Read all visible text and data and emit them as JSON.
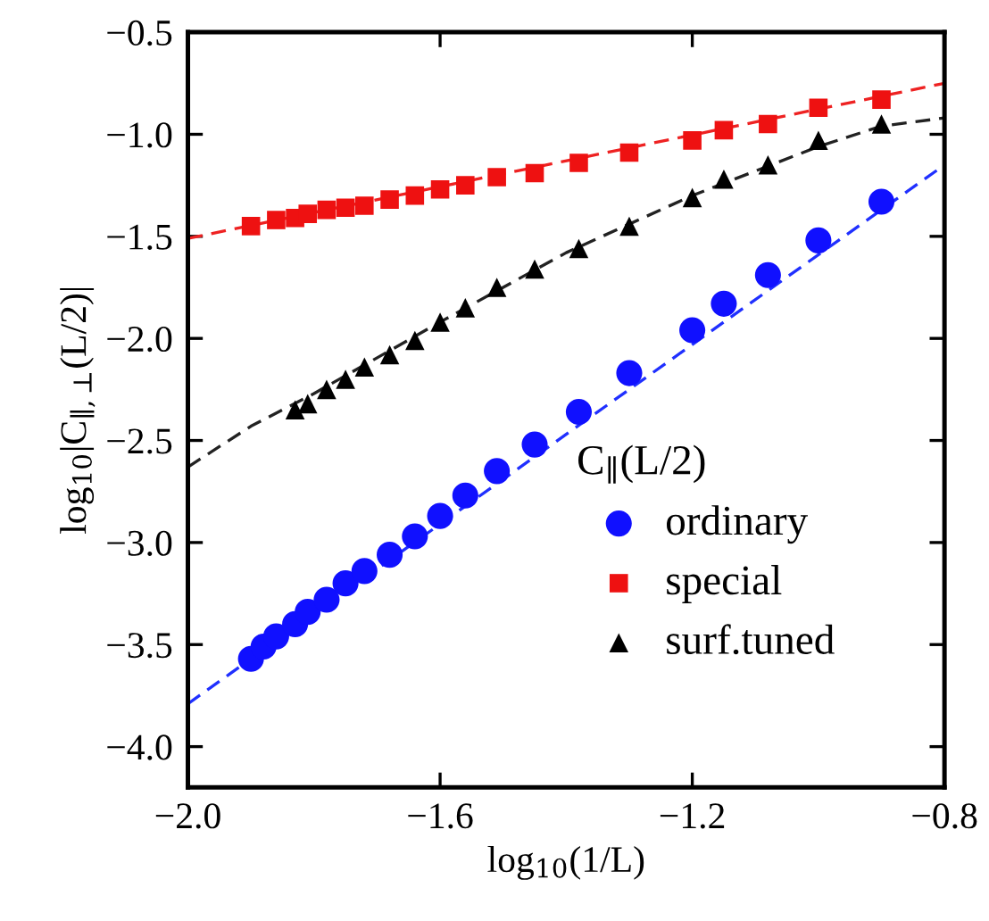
{
  "chart_data": {
    "type": "scatter",
    "xlabel": "log$_{10}$(1/L)",
    "ylabel": "log$_{10}$|C$_{∥,⊥}$(L/2)|",
    "legend_title": "C$_{∥}$(L/2)",
    "series": [
      {
        "name": "ordinary",
        "marker": "circle",
        "color": "#1010ff",
        "x": [
          -1.9,
          -1.88,
          -1.86,
          -1.83,
          -1.81,
          -1.78,
          -1.75,
          -1.72,
          -1.68,
          -1.64,
          -1.6,
          -1.56,
          -1.51,
          -1.45,
          -1.38,
          -1.3,
          -1.2,
          -1.15,
          -1.08,
          -1.0,
          -0.9
        ],
        "values": [
          -3.57,
          -3.51,
          -3.46,
          -3.4,
          -3.34,
          -3.28,
          -3.2,
          -3.14,
          -3.06,
          -2.97,
          -2.87,
          -2.77,
          -2.65,
          -2.52,
          -2.36,
          -2.17,
          -1.96,
          -1.83,
          -1.69,
          -1.52,
          -1.33
        ]
      },
      {
        "name": "special",
        "marker": "square",
        "color": "#ee1111",
        "x": [
          -1.9,
          -1.86,
          -1.83,
          -1.81,
          -1.78,
          -1.75,
          -1.72,
          -1.68,
          -1.64,
          -1.6,
          -1.56,
          -1.51,
          -1.45,
          -1.38,
          -1.3,
          -1.2,
          -1.15,
          -1.08,
          -1.0,
          -0.9
        ],
        "values": [
          -1.45,
          -1.42,
          -1.41,
          -1.39,
          -1.37,
          -1.36,
          -1.35,
          -1.32,
          -1.3,
          -1.27,
          -1.25,
          -1.21,
          -1.19,
          -1.14,
          -1.09,
          -1.03,
          -0.98,
          -0.95,
          -0.87,
          -0.83
        ]
      },
      {
        "name": "surf.tuned",
        "marker": "triangle",
        "color": "#000000",
        "x": [
          -1.83,
          -1.81,
          -1.78,
          -1.75,
          -1.72,
          -1.68,
          -1.64,
          -1.6,
          -1.56,
          -1.51,
          -1.45,
          -1.38,
          -1.3,
          -1.2,
          -1.15,
          -1.08,
          -1.0,
          -0.9
        ],
        "values": [
          -2.35,
          -2.32,
          -2.25,
          -2.2,
          -2.14,
          -2.08,
          -2.01,
          -1.92,
          -1.85,
          -1.75,
          -1.66,
          -1.56,
          -1.45,
          -1.31,
          -1.22,
          -1.15,
          -1.03,
          -0.95
        ]
      },
      {
        "type": "line",
        "line_style": "dashed",
        "color": "#2030ff",
        "x": [
          -2.0,
          -0.8
        ],
        "values": [
          -3.79,
          -1.15
        ]
      },
      {
        "type": "line",
        "line_style": "dashed",
        "color": "#ee2222",
        "x": [
          -2.0,
          -0.8
        ],
        "values": [
          -1.51,
          -0.75
        ]
      },
      {
        "type": "line",
        "line_style": "dashed",
        "color": "#222222",
        "x": [
          -2.0,
          -1.9,
          -1.8,
          -1.6,
          -1.4,
          -1.2,
          -1.0,
          -0.9,
          -0.8
        ],
        "values": [
          -2.63,
          -2.43,
          -2.27,
          -1.92,
          -1.58,
          -1.3,
          -1.06,
          -0.96,
          -0.92
        ]
      }
    ],
    "xlim": [
      -2.0,
      -0.8
    ],
    "ylim": [
      -4.2,
      -0.5
    ],
    "xticks": [
      {
        "value": -2.0,
        "label": "−2.0"
      },
      {
        "value": -1.6,
        "label": "−1.6"
      },
      {
        "value": -1.2,
        "label": "−1.2"
      },
      {
        "value": -0.8,
        "label": "−0.8"
      }
    ],
    "yticks": [
      {
        "value": -4.0,
        "label": "−4.0"
      },
      {
        "value": -3.5,
        "label": "−3.5"
      },
      {
        "value": -3.0,
        "label": "−3.0"
      },
      {
        "value": -2.5,
        "label": "−2.5"
      },
      {
        "value": -2.0,
        "label": "−2.0"
      },
      {
        "value": -1.5,
        "label": "−1.5"
      },
      {
        "value": -1.0,
        "label": "−1.0"
      },
      {
        "value": -0.5,
        "label": "−0.5"
      }
    ],
    "grid": false,
    "legend": "bottom right"
  }
}
